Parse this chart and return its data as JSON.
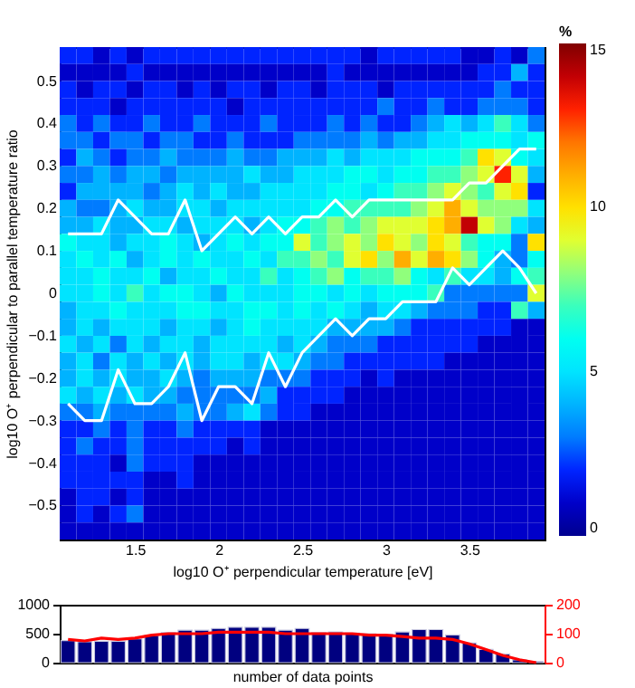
{
  "chart_data": [
    {
      "type": "heatmap",
      "xlabel": "log10 O⁺ perpendicular temperature [eV]",
      "ylabel": "log10 O⁺ perpendicular to parallel temperature ratio",
      "clabel": "%",
      "x": [
        1.1,
        1.2,
        1.3,
        1.4,
        1.5,
        1.6,
        1.7,
        1.8,
        1.9,
        2.0,
        2.1,
        2.2,
        2.3,
        2.4,
        2.5,
        2.6,
        2.7,
        2.8,
        2.9,
        3.0,
        3.1,
        3.2,
        3.3,
        3.4,
        3.5,
        3.6,
        3.7,
        3.8,
        3.9
      ],
      "xlim": [
        1.05,
        3.95
      ],
      "ylim": [
        -0.58,
        0.58
      ],
      "xticks": [
        1.5,
        2,
        2.5,
        3,
        3.5
      ],
      "yticks": [
        -0.5,
        -0.4,
        -0.3,
        -0.2,
        -0.1,
        0,
        0.1,
        0.2,
        0.3,
        0.4,
        0.5
      ],
      "clim": [
        0,
        15
      ],
      "cticks": [
        0,
        5,
        10,
        15
      ],
      "cells": [
        [
          2,
          2,
          1,
          2,
          1,
          2,
          2,
          2,
          2,
          2,
          2,
          2,
          2,
          2,
          2,
          2,
          2,
          2,
          1,
          2,
          2,
          2,
          2,
          2,
          1,
          1,
          2,
          1,
          3
        ],
        [
          1,
          1,
          1,
          1,
          2,
          1,
          1,
          1,
          1,
          1,
          1,
          1,
          1,
          1,
          1,
          1,
          2,
          1,
          1,
          1,
          1,
          1,
          1,
          1,
          1,
          2,
          2,
          4,
          2
        ],
        [
          2,
          1,
          2,
          2,
          1,
          2,
          2,
          1,
          2,
          1,
          2,
          2,
          1,
          2,
          2,
          1,
          2,
          2,
          2,
          1,
          2,
          2,
          2,
          2,
          2,
          2,
          3,
          2,
          2
        ],
        [
          2,
          2,
          2,
          1,
          2,
          2,
          2,
          2,
          2,
          2,
          1,
          2,
          2,
          2,
          2,
          2,
          2,
          2,
          2,
          3,
          2,
          2,
          3,
          2,
          2,
          3,
          3,
          3,
          2
        ],
        [
          3,
          2,
          3,
          2,
          2,
          3,
          2,
          2,
          3,
          2,
          2,
          2,
          3,
          2,
          2,
          2,
          3,
          2,
          3,
          2,
          2,
          3,
          4,
          5,
          4,
          5,
          7,
          5,
          3
        ],
        [
          3,
          3,
          2,
          3,
          3,
          2,
          3,
          3,
          2,
          2,
          3,
          2,
          2,
          2,
          3,
          3,
          3,
          3,
          4,
          3,
          4,
          4,
          5,
          5,
          6,
          6,
          6,
          5,
          6
        ],
        [
          2,
          4,
          3,
          2,
          3,
          3,
          4,
          3,
          3,
          3,
          4,
          3,
          3,
          4,
          4,
          4,
          5,
          4,
          5,
          5,
          5,
          6,
          6,
          6,
          7,
          10,
          9,
          6,
          5
        ],
        [
          3,
          3,
          4,
          3,
          4,
          4,
          3,
          4,
          4,
          4,
          4,
          5,
          4,
          4,
          5,
          5,
          5,
          6,
          6,
          5,
          6,
          6,
          7,
          7,
          8,
          9,
          13,
          9,
          4
        ],
        [
          2,
          4,
          4,
          4,
          4,
          3,
          4,
          5,
          4,
          5,
          4,
          4,
          5,
          5,
          5,
          5,
          6,
          6,
          5,
          6,
          7,
          7,
          8,
          9,
          8,
          7,
          9,
          10,
          2
        ],
        [
          4,
          3,
          3,
          4,
          5,
          4,
          4,
          5,
          5,
          4,
          5,
          5,
          5,
          5,
          5,
          6,
          6,
          7,
          7,
          7,
          7,
          8,
          9,
          11,
          9,
          8,
          8,
          8,
          5
        ],
        [
          4,
          4,
          5,
          4,
          4,
          5,
          5,
          4,
          5,
          5,
          5,
          4,
          5,
          6,
          6,
          7,
          8,
          7,
          8,
          9,
          9,
          9,
          10,
          11,
          14,
          9,
          8,
          5,
          4
        ],
        [
          6,
          5,
          5,
          4,
          5,
          5,
          6,
          5,
          4,
          5,
          6,
          5,
          6,
          6,
          9,
          7,
          8,
          9,
          8,
          10,
          9,
          8,
          10,
          9,
          7,
          6,
          6,
          3,
          10
        ],
        [
          5,
          6,
          5,
          6,
          4,
          5,
          6,
          5,
          6,
          5,
          5,
          6,
          5,
          7,
          7,
          8,
          7,
          9,
          10,
          8,
          11,
          9,
          11,
          10,
          8,
          6,
          4,
          3,
          6
        ],
        [
          5,
          5,
          6,
          5,
          5,
          6,
          4,
          5,
          5,
          6,
          5,
          5,
          7,
          5,
          6,
          7,
          8,
          6,
          7,
          7,
          8,
          6,
          5,
          7,
          5,
          5,
          4,
          6,
          7
        ],
        [
          5,
          5,
          6,
          5,
          7,
          5,
          6,
          6,
          5,
          4,
          6,
          5,
          5,
          5,
          6,
          6,
          5,
          6,
          5,
          6,
          6,
          6,
          7,
          3,
          3,
          3,
          3,
          3,
          9
        ],
        [
          4,
          5,
          5,
          6,
          5,
          5,
          5,
          6,
          6,
          5,
          5,
          6,
          6,
          5,
          6,
          5,
          6,
          5,
          4,
          5,
          5,
          4,
          3,
          3,
          3,
          2,
          2,
          7,
          4
        ],
        [
          4,
          5,
          4,
          5,
          5,
          5,
          4,
          5,
          5,
          4,
          5,
          6,
          5,
          5,
          5,
          5,
          4,
          4,
          4,
          4,
          3,
          2,
          2,
          2,
          2,
          2,
          2,
          1,
          1
        ],
        [
          5,
          4,
          5,
          3,
          5,
          4,
          5,
          5,
          4,
          5,
          5,
          5,
          5,
          4,
          5,
          4,
          3,
          3,
          3,
          2,
          2,
          2,
          2,
          2,
          2,
          1,
          1,
          1,
          1
        ],
        [
          4,
          5,
          3,
          5,
          4,
          5,
          4,
          5,
          4,
          5,
          5,
          4,
          5,
          5,
          4,
          3,
          3,
          2,
          2,
          2,
          2,
          2,
          2,
          1,
          1,
          1,
          1,
          1,
          1
        ],
        [
          4,
          5,
          4,
          5,
          4,
          4,
          5,
          4,
          3,
          4,
          4,
          4,
          3,
          3,
          3,
          2,
          2,
          2,
          1,
          2,
          1,
          1,
          1,
          1,
          1,
          1,
          1,
          1,
          1
        ],
        [
          5,
          4,
          5,
          4,
          5,
          4,
          4,
          3,
          3,
          3,
          3,
          3,
          4,
          2,
          2,
          2,
          2,
          1,
          1,
          1,
          1,
          1,
          1,
          1,
          1,
          1,
          1,
          1,
          1
        ],
        [
          3,
          3,
          4,
          3,
          3,
          3,
          3,
          4,
          3,
          3,
          4,
          5,
          3,
          2,
          2,
          1,
          1,
          1,
          1,
          1,
          1,
          1,
          1,
          1,
          1,
          1,
          1,
          1,
          1
        ],
        [
          2,
          2,
          3,
          2,
          3,
          2,
          2,
          3,
          2,
          2,
          2,
          2,
          1,
          1,
          1,
          1,
          1,
          1,
          1,
          1,
          1,
          1,
          1,
          1,
          1,
          1,
          1,
          1,
          1
        ],
        [
          2,
          3,
          2,
          2,
          3,
          2,
          2,
          2,
          2,
          2,
          1,
          2,
          1,
          1,
          1,
          1,
          1,
          1,
          1,
          1,
          1,
          1,
          1,
          1,
          1,
          1,
          1,
          1,
          1
        ],
        [
          2,
          2,
          2,
          1,
          3,
          2,
          2,
          2,
          1,
          1,
          1,
          1,
          1,
          1,
          1,
          1,
          1,
          1,
          1,
          1,
          1,
          1,
          1,
          1,
          1,
          1,
          1,
          1,
          1
        ],
        [
          2,
          2,
          2,
          2,
          2,
          1,
          1,
          2,
          1,
          1,
          1,
          1,
          1,
          1,
          1,
          1,
          1,
          1,
          1,
          1,
          1,
          1,
          1,
          1,
          1,
          1,
          1,
          1,
          1
        ],
        [
          1,
          2,
          2,
          1,
          2,
          1,
          1,
          1,
          1,
          1,
          1,
          1,
          1,
          1,
          1,
          1,
          1,
          1,
          1,
          1,
          1,
          1,
          1,
          1,
          1,
          1,
          1,
          1,
          1
        ],
        [
          1,
          2,
          1,
          2,
          3,
          1,
          1,
          1,
          1,
          1,
          1,
          1,
          1,
          1,
          1,
          1,
          1,
          1,
          1,
          1,
          1,
          1,
          1,
          1,
          1,
          1,
          1,
          1,
          1
        ],
        [
          1,
          1,
          1,
          1,
          1,
          1,
          1,
          1,
          1,
          1,
          1,
          1,
          1,
          1,
          1,
          1,
          1,
          1,
          1,
          1,
          1,
          1,
          1,
          1,
          1,
          1,
          1,
          1,
          1
        ]
      ],
      "series": [
        {
          "type": "line",
          "color": "#ffffff",
          "values": [
            0.14,
            0.14,
            0.14,
            0.22,
            0.18,
            0.14,
            0.14,
            0.22,
            0.1,
            0.14,
            0.18,
            0.14,
            0.18,
            0.14,
            0.18,
            0.18,
            0.22,
            0.18,
            0.22,
            0.22,
            0.22,
            0.22,
            0.22,
            0.22,
            0.26,
            0.26,
            0.3,
            0.34,
            0.34
          ]
        },
        {
          "type": "line",
          "color": "#ffffff",
          "values": [
            -0.26,
            -0.3,
            -0.3,
            -0.18,
            -0.26,
            -0.26,
            -0.22,
            -0.14,
            -0.3,
            -0.22,
            -0.22,
            -0.26,
            -0.14,
            -0.22,
            -0.14,
            -0.1,
            -0.06,
            -0.1,
            -0.06,
            -0.06,
            -0.02,
            -0.02,
            -0.02,
            0.06,
            0.02,
            0.06,
            0.1,
            0.06,
            0.0
          ]
        }
      ],
      "grid": false,
      "marker": "none",
      "line_style": "solid"
    },
    {
      "type": "bar",
      "xlabel": "number of data points",
      "x": [
        1.1,
        1.2,
        1.3,
        1.4,
        1.5,
        1.6,
        1.7,
        1.8,
        1.9,
        2.0,
        2.1,
        2.2,
        2.3,
        2.4,
        2.5,
        2.6,
        2.7,
        2.8,
        2.9,
        3.0,
        3.1,
        3.2,
        3.3,
        3.4,
        3.5,
        3.6,
        3.7,
        3.8,
        3.9
      ],
      "xlim": [
        1.05,
        3.95
      ],
      "ylim": [
        0,
        1000
      ],
      "yticks": [
        0,
        500,
        1000
      ],
      "y2lim": [
        0,
        200
      ],
      "y2ticks": [
        0,
        100,
        200
      ],
      "tick_labels": "y",
      "series": [
        {
          "type": "bar",
          "color": "#000080",
          "values": [
            380,
            360,
            370,
            370,
            410,
            470,
            520,
            560,
            560,
            590,
            610,
            610,
            610,
            560,
            590,
            520,
            530,
            510,
            500,
            490,
            530,
            570,
            570,
            480,
            340,
            230,
            150,
            50,
            20
          ]
        },
        {
          "type": "line",
          "axis": "y2",
          "color": "#ff0000",
          "values": [
            80,
            75,
            85,
            80,
            85,
            95,
            100,
            100,
            100,
            105,
            105,
            105,
            105,
            100,
            100,
            100,
            100,
            100,
            95,
            95,
            90,
            85,
            85,
            80,
            65,
            45,
            25,
            10,
            0
          ]
        }
      ],
      "grid": false,
      "marker": "none",
      "line_style": "solid"
    }
  ]
}
